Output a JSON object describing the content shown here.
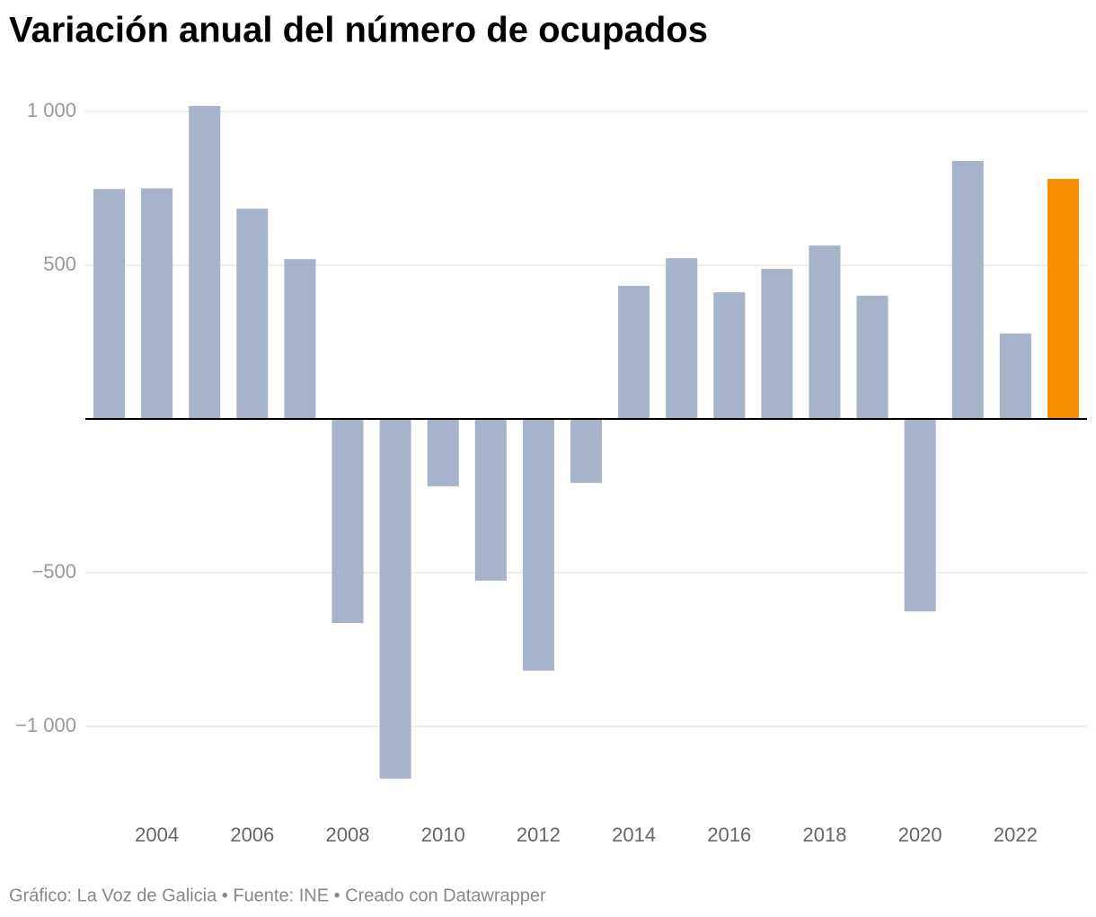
{
  "chart_data": {
    "type": "bar",
    "title": "Variación anual del número de ocupados",
    "source": "Gráfico: La Voz de Galicia • Fuente: INE • Creado con Datawrapper",
    "categories": [
      null,
      "2004",
      null,
      "2006",
      null,
      "2008",
      null,
      "2010",
      null,
      "2012",
      null,
      "2014",
      null,
      "2016",
      null,
      "2018",
      null,
      "2020",
      null,
      "2022",
      null
    ],
    "values": [
      748,
      750,
      1018,
      684,
      520,
      -664,
      -1170,
      -219,
      -526,
      -819,
      -208,
      433,
      523,
      412,
      488,
      564,
      401,
      -626,
      839,
      278,
      781
    ],
    "colors": [
      "#a7b3ca",
      "#a7b3ca",
      "#a7b3ca",
      "#a7b3ca",
      "#a7b3ca",
      "#a7b3ca",
      "#a7b3ca",
      "#a7b3ca",
      "#a7b3ca",
      "#a7b3ca",
      "#a7b3ca",
      "#a7b3ca",
      "#a7b3ca",
      "#a7b3ca",
      "#a7b3ca",
      "#a7b3ca",
      "#a7b3ca",
      "#a7b3ca",
      "#a7b3ca",
      "#a7b3ca",
      "#f78f00"
    ],
    "ylim": [
      -1250,
      1050
    ],
    "yticks": [
      {
        "value": 1000,
        "label": "1 000"
      },
      500,
      {
        "value": -500,
        "label": "−500"
      },
      {
        "value": -1000,
        "label": "−1 000"
      }
    ],
    "grid": true
  }
}
